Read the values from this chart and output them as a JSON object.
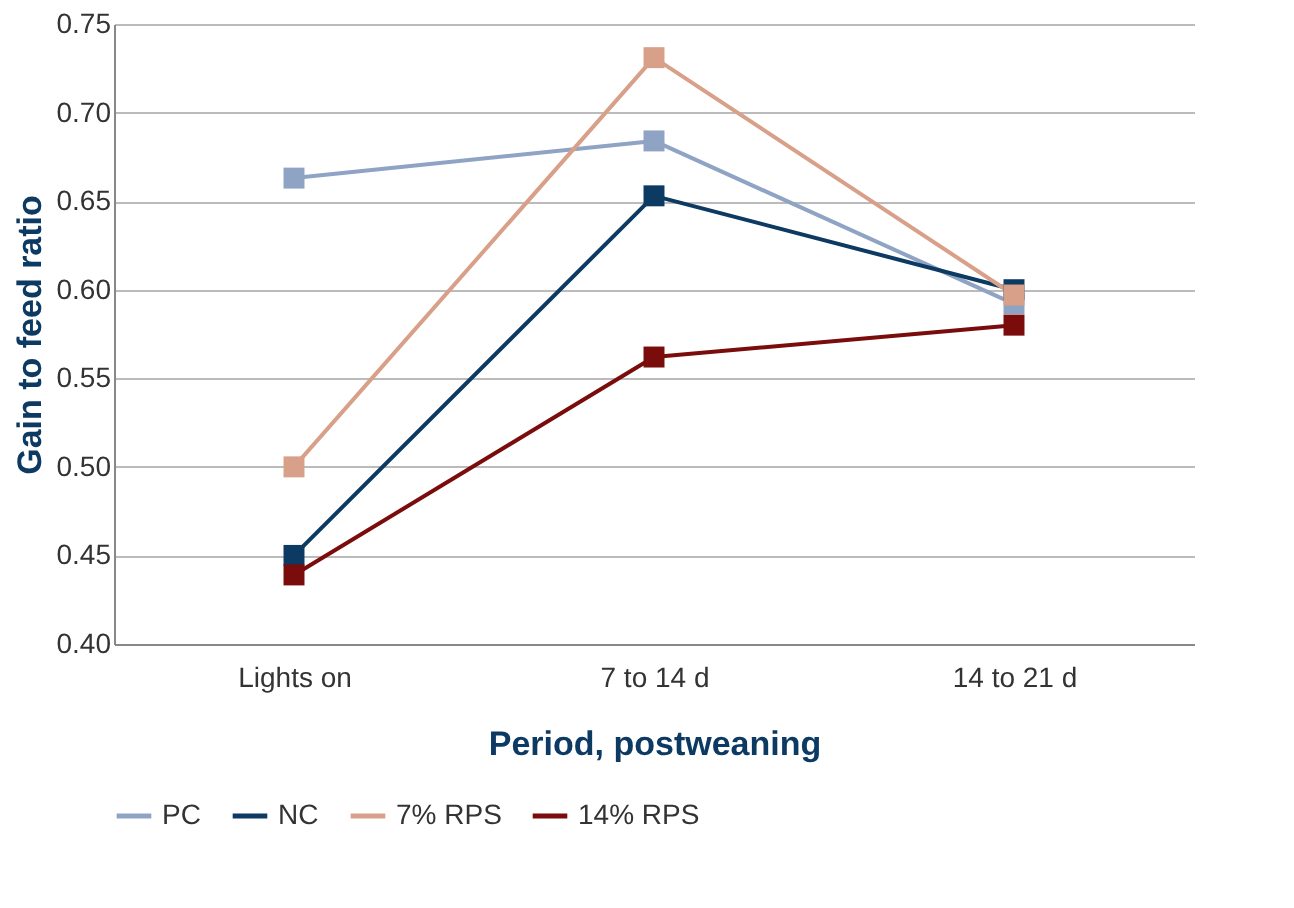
{
  "chart_data": {
    "type": "line",
    "xlabel": "Period, postweaning",
    "ylabel": "Gain to feed ratio",
    "categories": [
      "Lights on",
      "7 to 14 d",
      "14 to 21 d"
    ],
    "series": [
      {
        "name": "PC",
        "color": "#8fa3c4",
        "values": [
          0.663,
          0.684,
          0.592
        ]
      },
      {
        "name": "NC",
        "color": "#0d3a63",
        "values": [
          0.45,
          0.653,
          0.6
        ]
      },
      {
        "name": "7% RPS",
        "color": "#d9a089",
        "values": [
          0.5,
          0.731,
          0.597
        ]
      },
      {
        "name": "14% RPS",
        "color": "#7b0c0c",
        "values": [
          0.439,
          0.562,
          0.58
        ]
      }
    ],
    "ylim": [
      0.4,
      0.75
    ],
    "yticks": [
      {
        "value": 0.4,
        "label": "0.40"
      },
      0.45,
      {
        "value": 0.5,
        "label": "0.50"
      },
      0.55,
      {
        "value": 0.6,
        "label": "0.60"
      },
      0.65,
      {
        "value": 0.7,
        "label": "0.70"
      },
      0.75
    ],
    "grid": "y",
    "legend": "bottom",
    "marker": "square",
    "line_style": "solid"
  }
}
